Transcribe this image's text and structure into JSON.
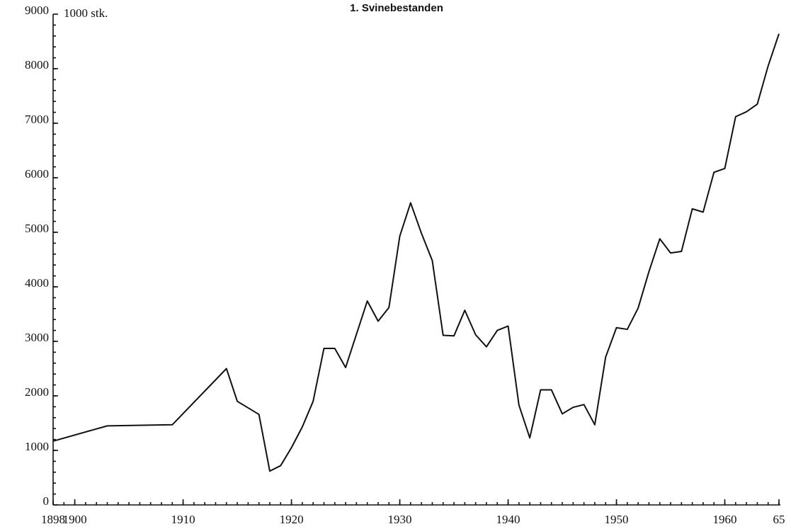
{
  "chart_data": {
    "type": "line",
    "title": "1. Svinebestanden",
    "y_label": "1000 stk.",
    "x": [
      1898,
      1903,
      1909,
      1914,
      1915,
      1917,
      1918,
      1919,
      1920,
      1921,
      1922,
      1923,
      1924,
      1925,
      1926,
      1927,
      1928,
      1929,
      1930,
      1931,
      1932,
      1933,
      1934,
      1935,
      1936,
      1937,
      1938,
      1939,
      1940,
      1941,
      1942,
      1943,
      1944,
      1945,
      1946,
      1947,
      1948,
      1949,
      1950,
      1951,
      1952,
      1953,
      1954,
      1955,
      1956,
      1957,
      1958,
      1959,
      1960,
      1961,
      1962,
      1963,
      1964,
      1965
    ],
    "series": [
      {
        "color": "#111111",
        "values": [
          1170,
          1450,
          1470,
          2500,
          1900,
          1660,
          620,
          720,
          1050,
          1430,
          1900,
          2870,
          2870,
          2520,
          3130,
          3740,
          3370,
          3620,
          4930,
          5540,
          4980,
          4480,
          3110,
          3100,
          3570,
          3120,
          2900,
          3200,
          3280,
          1830,
          1230,
          2110,
          2110,
          1670,
          1790,
          1840,
          1470,
          2710,
          3250,
          3220,
          3610,
          4280,
          4880,
          4620,
          4650,
          5430,
          5370,
          6100,
          6170,
          7120,
          7210,
          7350,
          8050,
          8640
        ]
      }
    ],
    "xlim": [
      1898,
      1965
    ],
    "xticks": [
      1898,
      1900,
      1910,
      1920,
      1930,
      1940,
      1950,
      1960,
      {
        "value": 1965,
        "label": "65"
      }
    ],
    "ylim": [
      0,
      9000
    ],
    "yticks": [
      0,
      1000,
      2000,
      3000,
      4000,
      5000,
      6000,
      7000,
      8000,
      9000
    ]
  }
}
